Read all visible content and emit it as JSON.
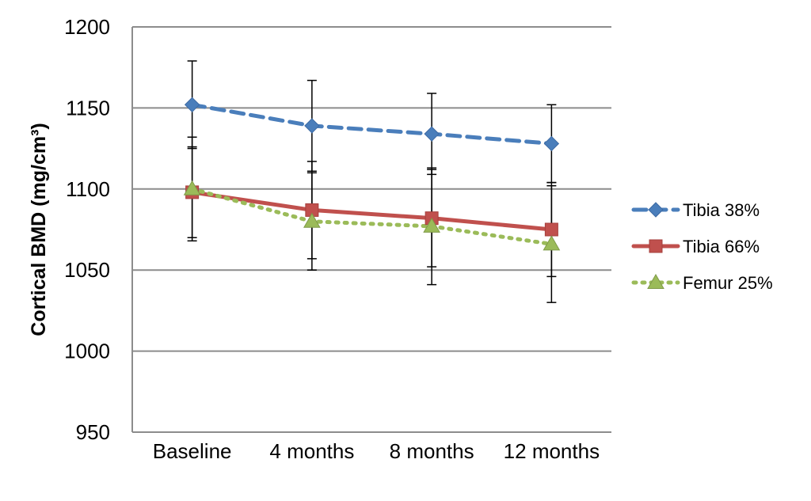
{
  "chart_data": {
    "type": "line",
    "title": "",
    "xlabel": "",
    "ylabel": "Cortical BMD (mg/cm³)",
    "categories": [
      "Baseline",
      "4 months",
      "8 months",
      "12 months"
    ],
    "ylim": [
      950,
      1200
    ],
    "yticks": [
      950,
      1000,
      1050,
      1100,
      1150,
      1200
    ],
    "grid": true,
    "legend_position": "right",
    "series": [
      {
        "name": "Tibia 38%",
        "values": [
          1152,
          1139,
          1134,
          1128
        ],
        "error": [
          27,
          28,
          25,
          24
        ],
        "color": "#4a7ebb",
        "line_style": "dashed",
        "marker": "diamond"
      },
      {
        "name": "Tibia 66%",
        "values": [
          1098,
          1087,
          1082,
          1075
        ],
        "error": [
          28,
          30,
          30,
          29
        ],
        "color": "#c0504d",
        "line_style": "solid",
        "marker": "square"
      },
      {
        "name": "Femur 25%",
        "values": [
          1100,
          1080,
          1077,
          1066
        ],
        "error": [
          32,
          30,
          36,
          36
        ],
        "color": "#9bbb59",
        "line_style": "dotted",
        "marker": "triangle"
      }
    ]
  }
}
